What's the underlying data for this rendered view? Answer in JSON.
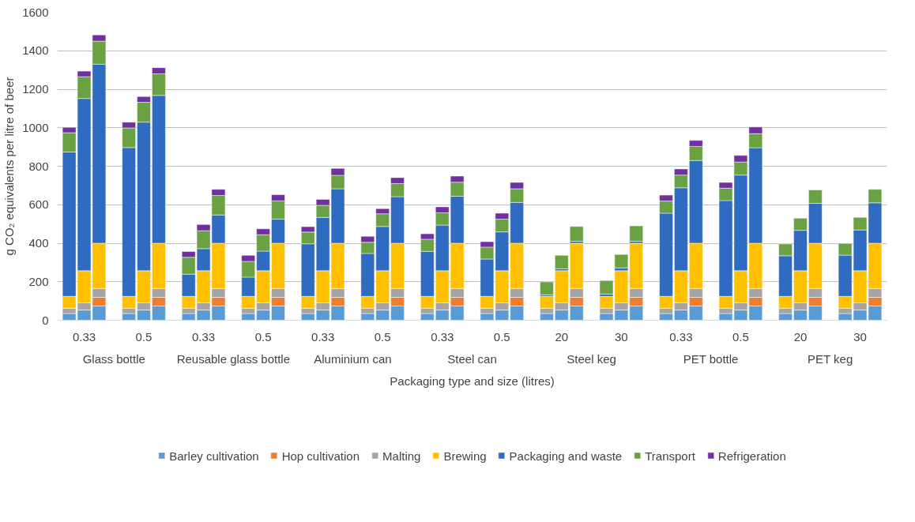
{
  "chart_data": {
    "type": "bar",
    "stacked": true,
    "xlabel": "Packaging type and size (litres)",
    "ylabel": "g CO₂ equivalents per litre of beer",
    "categories": [
      null,
      "0.33",
      null,
      null,
      "0.5",
      null,
      null,
      "0.33",
      null,
      null,
      "0.5",
      null,
      null,
      "0.33",
      null,
      null,
      "0.5",
      null,
      null,
      "0.33",
      null,
      null,
      "0.5",
      null,
      null,
      "20",
      null,
      null,
      "30",
      null,
      null,
      "0.33",
      null,
      null,
      "0.5",
      null,
      null,
      "20",
      null,
      null,
      "30",
      null
    ],
    "annotations": [
      "Glass bottle",
      "Reusable glass bottle",
      "Aluminium can",
      "Steel can",
      "Steel keg",
      "PET bottle",
      "PET keg"
    ],
    "ylim": [
      0,
      1600
    ],
    "yticks": [
      0,
      200,
      400,
      600,
      800,
      1000,
      1200,
      1400,
      1600
    ],
    "grid": "y",
    "legend": "bottom",
    "series": [
      {
        "name": "Barley cultivation",
        "color": "#5b9bd5",
        "values": [
          35,
          53,
          74,
          35,
          53,
          74,
          35,
          53,
          74,
          35,
          53,
          74,
          35,
          53,
          74,
          35,
          53,
          74,
          35,
          53,
          74,
          35,
          53,
          74,
          35,
          53,
          74,
          35,
          53,
          74,
          35,
          53,
          74,
          35,
          53,
          74,
          35,
          53,
          74,
          35,
          53,
          74
        ]
      },
      {
        "name": "Hop cultivation",
        "color": "#ed7d31",
        "values": [
          null,
          null,
          45,
          null,
          null,
          45,
          null,
          null,
          45,
          null,
          null,
          45,
          null,
          null,
          45,
          null,
          null,
          45,
          null,
          null,
          45,
          null,
          null,
          45,
          null,
          null,
          45,
          null,
          null,
          45,
          null,
          null,
          45,
          null,
          null,
          45,
          null,
          null,
          45,
          null,
          null,
          45
        ]
      },
      {
        "name": "Malting",
        "color": "#a5a5a5",
        "values": [
          27,
          38,
          46,
          27,
          38,
          46,
          27,
          38,
          46,
          27,
          38,
          46,
          27,
          38,
          46,
          27,
          38,
          46,
          27,
          38,
          46,
          27,
          38,
          46,
          27,
          38,
          46,
          27,
          38,
          46,
          27,
          38,
          46,
          27,
          38,
          46,
          27,
          38,
          46,
          27,
          38,
          46
        ]
      },
      {
        "name": "Brewing",
        "color": "#ffc000",
        "values": [
          62,
          166,
          235,
          62,
          166,
          235,
          62,
          166,
          235,
          62,
          166,
          235,
          62,
          166,
          235,
          62,
          166,
          235,
          62,
          166,
          235,
          62,
          166,
          235,
          62,
          166,
          235,
          62,
          166,
          235,
          62,
          166,
          235,
          62,
          166,
          235,
          62,
          166,
          235,
          62,
          166,
          235
        ]
      },
      {
        "name": "Packaging and waste",
        "color": "#2f6bc0",
        "values": [
          750,
          895,
          930,
          773,
          772,
          768,
          115,
          115,
          147,
          100,
          102,
          125,
          273,
          277,
          283,
          223,
          230,
          242,
          234,
          237,
          244,
          194,
          202,
          212,
          8,
          10,
          10,
          12,
          15,
          10,
          432,
          431,
          430,
          498,
          497,
          496,
          211,
          210,
          207,
          214,
          212,
          210
        ]
      },
      {
        "name": "Transport",
        "color": "#6aa143",
        "values": [
          100,
          113,
          120,
          102,
          103,
          112,
          88,
          93,
          101,
          82,
          85,
          95,
          61,
          63,
          70,
          58,
          66,
          68,
          63,
          64,
          73,
          62,
          66,
          71,
          67,
          70,
          77,
          70,
          70,
          80,
          63,
          66,
          73,
          64,
          68,
          73,
          61,
          63,
          70,
          61,
          65,
          70
        ]
      },
      {
        "name": "Refrigeration",
        "color": "#7030a0",
        "values": [
          28,
          29,
          32,
          30,
          30,
          32,
          30,
          32,
          32,
          31,
          31,
          32,
          28,
          31,
          36,
          31,
          27,
          31,
          28,
          31,
          32,
          28,
          31,
          33,
          null,
          null,
          null,
          null,
          null,
          null,
          31,
          32,
          31,
          30,
          34,
          35,
          null,
          null,
          null,
          null,
          null,
          null
        ]
      }
    ]
  }
}
